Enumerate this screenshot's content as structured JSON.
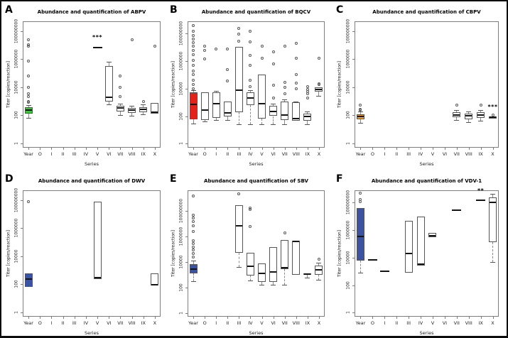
{
  "figure": {
    "background": "#ffffff",
    "border_color": "#0d0d0d",
    "panels_per_row": 3
  },
  "chart_data": [
    {
      "panel_label": "A",
      "type": "boxplot",
      "title": "Abundance and quantification of ABPV",
      "xlabel": "Series",
      "ylabel": "Titer [copies/reaction]",
      "y_scale": "log10",
      "ylim": [
        0.5,
        500000000
      ],
      "y_ticks": [
        1,
        100,
        10000,
        1000000,
        100000000
      ],
      "y_tick_labels": [
        "1",
        "100",
        "10000",
        "1000000",
        "100000000"
      ],
      "x_categories": [
        "Year",
        "O",
        "I",
        "II",
        "III",
        "IV",
        "V",
        "VI",
        "VII",
        "VIII",
        "IX",
        "X"
      ],
      "highlight_color": "#41c141",
      "boxes": [
        {
          "category": "Year",
          "fill": "#41c141",
          "whisker_low": 66,
          "q1": 140,
          "median": 250,
          "q3": 380,
          "whisker_high": 525,
          "outliers": [
            850,
            980,
            2200,
            3400,
            9500,
            63000,
            750000,
            9000000,
            11000000,
            25000000
          ]
        },
        {
          "category": "V",
          "fill": "#ffffff",
          "whisker_low": 7000000,
          "q1": 7000000,
          "median": 7000000,
          "q3": 7000000,
          "whisker_high": 7000000,
          "outliers": []
        },
        {
          "category": "VI",
          "fill": "#ffffff",
          "whisker_low": 590,
          "q1": 980,
          "median": 2000,
          "q3": 320000,
          "whisker_high": 660000,
          "outliers": []
        },
        {
          "category": "VII",
          "fill": "#ffffff",
          "whisker_low": 110,
          "q1": 185,
          "median": 350,
          "q3": 490,
          "whisker_high": 650,
          "outliers": [
            2200,
            9500,
            63000
          ]
        },
        {
          "category": "VIII",
          "fill": "#ffffff",
          "whisker_low": 89,
          "q1": 150,
          "median": 230,
          "q3": 350,
          "whisker_high": 490,
          "outliers": [
            25000000
          ]
        },
        {
          "category": "IX",
          "fill": "#ffffff",
          "whisker_low": 115,
          "q1": 160,
          "median": 265,
          "q3": 370,
          "whisker_high": 575,
          "outliers": [
            980
          ]
        },
        {
          "category": "X",
          "fill": "#ffffff",
          "whisker_low": 140,
          "q1": 140,
          "median": 165,
          "q3": 730,
          "whisker_high": 730,
          "outliers": [
            9000000
          ]
        }
      ],
      "annotations": [
        {
          "category": "V",
          "text": "***",
          "value": 22000000
        }
      ]
    },
    {
      "panel_label": "B",
      "type": "boxplot",
      "title": "Abundance and quantification of BQCV",
      "xlabel": "Series",
      "ylabel": "Titer [copies/reaction]",
      "y_scale": "log10",
      "ylim": [
        0.5,
        800000000
      ],
      "y_ticks": [
        1,
        100,
        10000,
        1000000,
        100000000
      ],
      "y_tick_labels": [
        "1",
        "100",
        "10000",
        "1000000",
        "100000000"
      ],
      "x_categories": [
        "Year",
        "O",
        "I",
        "II",
        "III",
        "IV",
        "V",
        "VI",
        "VII",
        "VIII",
        "IX",
        "X"
      ],
      "highlight_color": "#e3231b",
      "boxes": [
        {
          "category": "Year",
          "fill": "#e3231b",
          "whisker_low": 30,
          "q1": 60,
          "median": 700,
          "q3": 5500,
          "whisker_high": 7500,
          "outliers": [
            10000,
            20000,
            40000,
            100000,
            200000,
            500000,
            1200000,
            3000000,
            6000000,
            12000000,
            22000000,
            40000000,
            70000000,
            150000000,
            400000000
          ]
        },
        {
          "category": "O",
          "fill": "#ffffff",
          "whisker_low": 40,
          "q1": 55,
          "median": 280,
          "q3": 5500,
          "whisker_high": 6500,
          "outliers": [
            1500000,
            6000000,
            13000000
          ]
        },
        {
          "category": "I",
          "fill": "#ffffff",
          "whisker_low": 55,
          "q1": 75,
          "median": 850,
          "q3": 5200,
          "whisker_high": 7000,
          "outliers": [
            8000000
          ]
        },
        {
          "category": "II",
          "fill": "#ffffff",
          "whisker_low": 50,
          "q1": 90,
          "median": 180,
          "q3": 1100,
          "whisker_high": 1300,
          "outliers": [
            35000,
            250000,
            8000000
          ]
        },
        {
          "category": "III",
          "fill": "#ffffff",
          "whisker_low": 25,
          "q1": 185,
          "median": 8000,
          "q3": 11000000,
          "whisker_high": 11000000,
          "outliers": [
            30000000,
            90000000,
            250000000
          ]
        },
        {
          "category": "IV",
          "fill": "#ffffff",
          "whisker_low": 25,
          "q1": 650,
          "median": 2200,
          "q3": 5200,
          "whisker_high": 8000,
          "outliers": [
            14000,
            40000,
            480000,
            2600000,
            25000000,
            150000000
          ]
        },
        {
          "category": "V",
          "fill": "#ffffff",
          "whisker_low": 25,
          "q1": 66,
          "median": 800,
          "q3": 100000,
          "whisker_high": 100000,
          "outliers": [
            1600000,
            13000000
          ]
        },
        {
          "category": "VI",
          "fill": "#ffffff",
          "whisker_low": 25,
          "q1": 100,
          "median": 230,
          "q3": 530,
          "whisker_high": 800,
          "outliers": [
            2200,
            18000,
            600000,
            5000000
          ]
        },
        {
          "category": "VII",
          "fill": "#ffffff",
          "whisker_low": 25,
          "q1": 54,
          "median": 123,
          "q3": 1200,
          "whisker_high": 1600,
          "outliers": [
            4200,
            12000,
            27000,
            12000000
          ]
        },
        {
          "category": "VIII",
          "fill": "#ffffff",
          "whisker_low": 40,
          "q1": 44,
          "median": 66,
          "q3": 980,
          "whisker_high": 1200,
          "outliers": [
            10000,
            25000,
            100000,
            1600000,
            20000000
          ]
        },
        {
          "category": "IX",
          "fill": "#ffffff",
          "whisker_low": 25,
          "q1": 44,
          "median": 100,
          "q3": 150,
          "whisker_high": 230,
          "outliers": [
            2000,
            4200,
            6000,
            9000,
            14000
          ]
        },
        {
          "category": "X",
          "fill": "#ffffff",
          "whisker_low": 3000,
          "q1": 6000,
          "median": 9000,
          "q3": 13000,
          "whisker_high": 15000,
          "outliers": [
            19000,
            23000,
            1600000
          ]
        }
      ],
      "annotations": []
    },
    {
      "panel_label": "C",
      "type": "boxplot",
      "title": "Abundance and quantification of CBPV",
      "xlabel": "Series",
      "ylabel": "Titer [copies/reaction]",
      "y_scale": "log10",
      "ylim": [
        0.5,
        500000000
      ],
      "y_ticks": [
        1,
        100,
        10000,
        1000000,
        100000000
      ],
      "y_tick_labels": [
        "1",
        "100",
        "10000",
        "1000000",
        "100000000"
      ],
      "x_categories": [
        "Year",
        "O",
        "I",
        "II",
        "III",
        "IV",
        "V",
        "VI",
        "VII",
        "VIII",
        "IX",
        "X"
      ],
      "highlight_color": "#f2a12e",
      "boxes": [
        {
          "category": "Year",
          "fill": "#f2a12e",
          "whisker_low": 29,
          "q1": 54,
          "median": 81,
          "q3": 123,
          "whisker_high": 185,
          "outliers": [
            240,
            280,
            525
          ]
        },
        {
          "category": "VII",
          "fill": "#ffffff",
          "whisker_low": 49,
          "q1": 71,
          "median": 110,
          "q3": 165,
          "whisker_high": 250,
          "outliers": [
            525
          ]
        },
        {
          "category": "VIII",
          "fill": "#ffffff",
          "whisker_low": 35,
          "q1": 54,
          "median": 93,
          "q3": 140,
          "whisker_high": 185,
          "outliers": []
        },
        {
          "category": "IX",
          "fill": "#ffffff",
          "whisker_low": 44,
          "q1": 66,
          "median": 112,
          "q3": 175,
          "whisker_high": 250,
          "outliers": [
            525
          ]
        },
        {
          "category": "X",
          "fill": "#ffffff",
          "whisker_low": 61,
          "q1": 61,
          "median": 71,
          "q3": 81,
          "whisker_high": 81,
          "outliers": [
            110
          ]
        }
      ],
      "annotations": [
        {
          "category": "X",
          "text": "***",
          "value": 240
        }
      ]
    },
    {
      "panel_label": "D",
      "type": "boxplot",
      "title": "Abundance and quantification of DWV",
      "xlabel": "Series",
      "ylabel": "Titer [copies/reaction]",
      "y_scale": "log10",
      "ylim": [
        0.5,
        500000000
      ],
      "y_ticks": [
        1,
        100,
        10000,
        1000000,
        100000000
      ],
      "y_tick_labels": [
        "1",
        "100",
        "10000",
        "1000000",
        "100000000"
      ],
      "x_categories": [
        "Year",
        "O",
        "I",
        "II",
        "III",
        "IV",
        "V",
        "VI",
        "VII",
        "VIII",
        "IX",
        "X"
      ],
      "highlight_color": "#3a53a4",
      "boxes": [
        {
          "category": "Year",
          "fill": "#3a53a4",
          "whisker_low": 60,
          "q1": 70,
          "median": 250,
          "q3": 600,
          "whisker_high": 620,
          "outliers": [
            80000000
          ]
        },
        {
          "category": "V",
          "fill": "#ffffff",
          "whisker_low": 250,
          "q1": 250,
          "median": 320,
          "q3": 80000000,
          "whisker_high": 80000000,
          "outliers": []
        },
        {
          "category": "X",
          "fill": "#ffffff",
          "whisker_low": 85,
          "q1": 85,
          "median": 95,
          "q3": 600,
          "whisker_high": 600,
          "outliers": []
        }
      ],
      "annotations": []
    },
    {
      "panel_label": "E",
      "type": "boxplot",
      "title": "Abundance and quantification of SBV",
      "xlabel": "Series",
      "ylabel": "Titer [copies/reaction]",
      "y_scale": "log10",
      "ylim": [
        0.5,
        4000000000
      ],
      "y_ticks": [
        1,
        100,
        10000,
        1000000,
        100000000
      ],
      "y_tick_labels": [
        "1",
        "100",
        "10000",
        "1000000",
        "100000000"
      ],
      "x_categories": [
        "Year",
        "O",
        "I",
        "II",
        "III",
        "IV",
        "V",
        "VI",
        "VII",
        "VIII",
        "IX",
        "X"
      ],
      "highlight_color": "#3a53a4",
      "boxes": [
        {
          "category": "Year",
          "fill": "#3a53a4",
          "whisker_low": 290,
          "q1": 1300,
          "median": 2800,
          "q3": 6500,
          "whisker_high": 12000,
          "outliers": [
            25000,
            45000,
            80000,
            150000,
            260000,
            450000,
            2500000,
            7000000,
            15000000,
            26000000,
            45000000,
            1500000000
          ]
        },
        {
          "category": "III",
          "fill": "#ffffff",
          "whisker_low": 4000,
          "q1": 50000,
          "median": 7000000,
          "q3": 280000000,
          "whisker_high": 280000000,
          "outliers": [
            2000000000
          ]
        },
        {
          "category": "IV",
          "fill": "#ffffff",
          "whisker_low": 350,
          "q1": 800,
          "median": 4500,
          "q3": 50000,
          "whisker_high": 50000,
          "outliers": [
            6000000,
            120000000,
            170000000
          ]
        },
        {
          "category": "V",
          "fill": "#ffffff",
          "whisker_low": 160,
          "q1": 280,
          "median": 1300,
          "q3": 7500,
          "whisker_high": 7500,
          "outliers": []
        },
        {
          "category": "VI",
          "fill": "#ffffff",
          "whisker_low": 160,
          "q1": 260,
          "median": 1700,
          "q3": 140000,
          "whisker_high": 160000,
          "outliers": []
        },
        {
          "category": "VII",
          "fill": "#ffffff",
          "whisker_low": 160,
          "q1": 2800,
          "median": 3500,
          "q3": 480000,
          "whisker_high": 480000,
          "outliers": [
            1800000
          ]
        },
        {
          "category": "VIII",
          "fill": "#ffffff",
          "whisker_low": 1000,
          "q1": 1000,
          "median": 400000,
          "q3": 450000,
          "whisker_high": 450000,
          "outliers": []
        },
        {
          "category": "IX",
          "fill": "#ffffff",
          "whisker_low": 550,
          "q1": 900,
          "median": 1100,
          "q3": 1300,
          "whisker_high": 1500,
          "outliers": []
        },
        {
          "category": "X",
          "fill": "#ffffff",
          "whisker_low": 400,
          "q1": 1000,
          "median": 2500,
          "q3": 5000,
          "whisker_high": 8000,
          "outliers": [
            16000
          ]
        }
      ],
      "annotations": []
    },
    {
      "panel_label": "F",
      "type": "boxplot",
      "title": "Abundance and quantification of VDV-1",
      "xlabel": "Series",
      "ylabel": "Titer [copies/reaction]",
      "y_scale": "log10",
      "ylim": [
        0.5,
        800000000
      ],
      "y_ticks": [
        1,
        100,
        10000,
        1000000,
        100000000
      ],
      "y_tick_labels": [
        "1",
        "100",
        "10000",
        "1000000",
        "100000000"
      ],
      "x_categories": [
        "Year",
        "O",
        "I",
        "II",
        "III",
        "IV",
        "V",
        "VI",
        "VII",
        "VIII",
        "IX",
        "X"
      ],
      "highlight_color": "#3a53a4",
      "boxes": [
        {
          "category": "Year",
          "fill": "#3a53a4",
          "whisker_low": 850,
          "q1": 5800,
          "median": 330000,
          "q3": 40000000,
          "whisker_high": 40000000,
          "outliers": [
            120000000,
            180000000,
            500000000
          ]
        },
        {
          "category": "O",
          "fill": "#ffffff",
          "whisker_low": 7000,
          "q1": 7000,
          "median": 7000,
          "q3": 7000,
          "whisker_high": 7000,
          "outliers": []
        },
        {
          "category": "I",
          "fill": "#ffffff",
          "whisker_low": 1000,
          "q1": 1000,
          "median": 1000,
          "q3": 1000,
          "whisker_high": 1000,
          "outliers": []
        },
        {
          "category": "III",
          "fill": "#ffffff",
          "whisker_low": 850,
          "q1": 850,
          "median": 20000,
          "q3": 5000000,
          "whisker_high": 5000000,
          "outliers": []
        },
        {
          "category": "IV",
          "fill": "#ffffff",
          "whisker_low": 2800,
          "q1": 2800,
          "median": 3200,
          "q3": 10000000,
          "whisker_high": 10000000,
          "outliers": []
        },
        {
          "category": "V",
          "fill": "#ffffff",
          "whisker_low": 260000,
          "q1": 300000,
          "median": 400000,
          "q3": 600000,
          "whisker_high": 600000,
          "outliers": []
        },
        {
          "category": "VII",
          "fill": "#ffffff",
          "whisker_low": 30000000,
          "q1": 30000000,
          "median": 30000000,
          "q3": 30000000,
          "whisker_high": 30000000,
          "outliers": []
        },
        {
          "category": "IX",
          "fill": "#ffffff",
          "whisker_low": 150000000,
          "q1": 150000000,
          "median": 150000000,
          "q3": 150000000,
          "whisker_high": 150000000,
          "outliers": []
        },
        {
          "category": "X",
          "fill": "#ffffff",
          "whisker_low": 4700,
          "q1": 130000,
          "median": 100000000,
          "q3": 250000000,
          "whisker_high": 450000000,
          "outliers": []
        }
      ],
      "annotations": [
        {
          "category": "IX",
          "text": "**",
          "value": 450000000
        }
      ]
    }
  ]
}
